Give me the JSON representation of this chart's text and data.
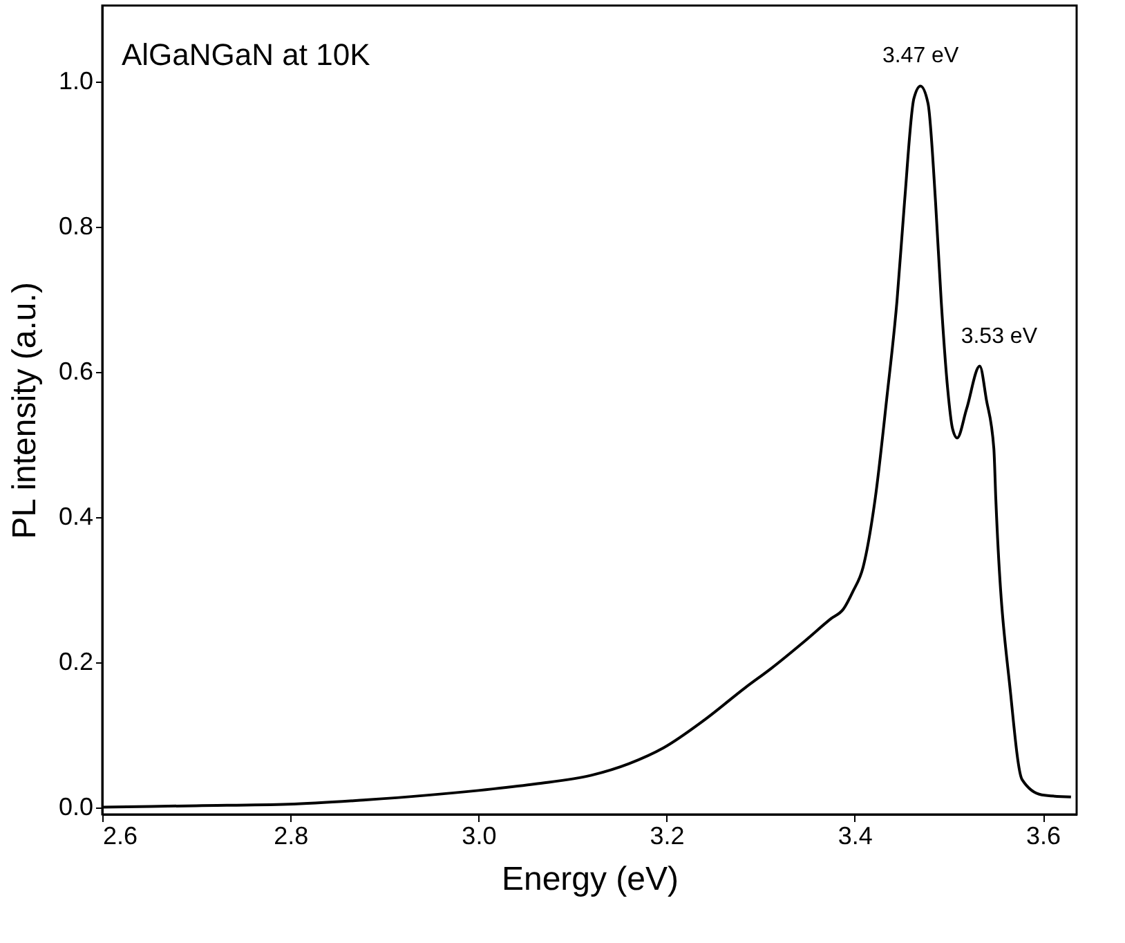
{
  "chart_data": {
    "type": "line",
    "xlabel": "Energy (eV)",
    "ylabel": "PL intensity (a.u.)",
    "annotations": [
      "AlGaNGaN at 10K",
      {
        "text": "3.47 eV",
        "x": 3.47,
        "y": 0.994
      },
      {
        "text": "3.53 eV",
        "x": 3.533,
        "y": 0.608
      }
    ],
    "series": [
      {
        "color": "#000000",
        "x": [
          2.601,
          2.7,
          2.798,
          2.88,
          3.0,
          3.06,
          3.12,
          3.16,
          3.197,
          3.24,
          3.284,
          3.311,
          3.347,
          3.375,
          3.388,
          3.398,
          3.409,
          3.422,
          3.434,
          3.445,
          3.453,
          3.463,
          3.47,
          3.478,
          3.486,
          3.492,
          3.499,
          3.504,
          3.509,
          3.519,
          3.533,
          3.54,
          3.548,
          3.55,
          3.566,
          3.578,
          3.599,
          3.63
        ],
        "values": [
          0.0,
          0.002,
          0.004,
          0.01,
          0.023,
          0.032,
          0.044,
          0.06,
          0.082,
          0.12,
          0.165,
          0.191,
          0.229,
          0.26,
          0.273,
          0.297,
          0.331,
          0.427,
          0.562,
          0.698,
          0.834,
          0.977,
          0.994,
          0.97,
          0.834,
          0.698,
          0.575,
          0.522,
          0.509,
          0.549,
          0.608,
          0.562,
          0.494,
          0.427,
          0.154,
          0.038,
          0.017,
          0.014
        ]
      }
    ],
    "xlim": [
      2.6,
      3.636
    ],
    "ylim": [
      -0.01,
      1.105
    ],
    "xticks": [
      {
        "value": 2.6,
        "label": "2.6"
      },
      {
        "value": 2.8,
        "label": "2.8"
      },
      {
        "value": 3.0,
        "label": "3.0"
      },
      {
        "value": 3.2,
        "label": "3.2"
      },
      {
        "value": 3.4,
        "label": "3.4"
      },
      {
        "value": 3.6,
        "label": "3.6"
      }
    ],
    "yticks": [
      {
        "value": 0,
        "label": "0.0"
      },
      {
        "value": 0.2,
        "label": "0.2"
      },
      {
        "value": 0.4,
        "label": "0.4"
      },
      {
        "value": 0.6,
        "label": "0.6"
      },
      {
        "value": 0.8,
        "label": "0.8"
      },
      {
        "value": 1.0,
        "label": "1.0"
      }
    ],
    "grid": false,
    "marker": "none",
    "line_style": "solid"
  }
}
